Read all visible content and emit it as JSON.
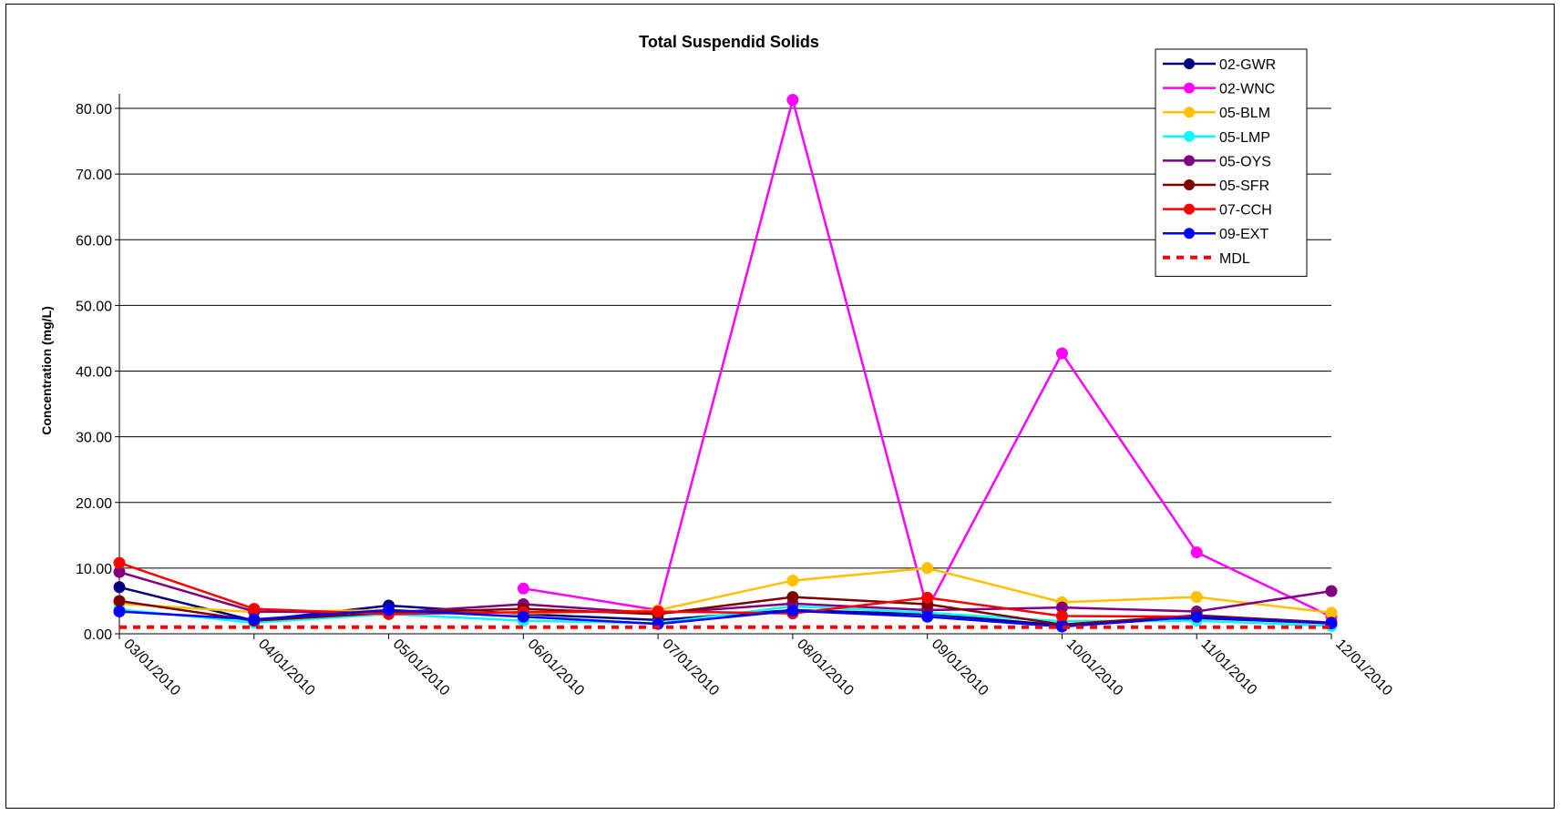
{
  "chart_data": {
    "type": "line",
    "title": "Total Suspendid Solids",
    "xlabel": "",
    "ylabel": "Concentration (mg/L)",
    "ylim": [
      0,
      80
    ],
    "yticks": [
      "0.00",
      "10.00",
      "20.00",
      "30.00",
      "40.00",
      "50.00",
      "60.00",
      "70.00",
      "80.00"
    ],
    "categories": [
      "03/01/2010",
      "04/01/2010",
      "05/01/2010",
      "06/01/2010",
      "07/01/2010",
      "08/01/2010",
      "09/01/2010",
      "10/01/2010",
      "11/01/2010",
      "12/01/2010"
    ],
    "grid": "horizontal",
    "legend_position": "top-right",
    "series": [
      {
        "name": "02-GWR",
        "color": "#000080",
        "values": [
          7.1,
          2.0,
          4.3,
          3.0,
          2.1,
          3.6,
          3.0,
          1.3,
          2.4,
          1.6
        ]
      },
      {
        "name": "02-WNC",
        "color": "#FF00FF",
        "values": [
          null,
          null,
          null,
          6.9,
          3.6,
          81.3,
          3.8,
          42.7,
          12.4,
          2.6
        ]
      },
      {
        "name": "05-BLM",
        "color": "#FFC000",
        "values": [
          4.6,
          3.3,
          3.6,
          3.1,
          3.6,
          8.1,
          10.0,
          4.8,
          5.6,
          3.2
        ]
      },
      {
        "name": "05-LMP",
        "color": "#00FFFF",
        "values": [
          3.7,
          1.7,
          3.0,
          2.0,
          1.6,
          4.2,
          3.2,
          1.9,
          2.0,
          1.2
        ]
      },
      {
        "name": "05-OYS",
        "color": "#800080",
        "values": [
          9.4,
          3.4,
          3.2,
          4.5,
          3.1,
          4.6,
          3.6,
          4.0,
          3.4,
          6.5
        ]
      },
      {
        "name": "05-SFR",
        "color": "#800000",
        "values": [
          5.0,
          2.0,
          3.2,
          3.8,
          3.0,
          5.6,
          4.5,
          1.4,
          2.8,
          1.7
        ]
      },
      {
        "name": "07-CCH",
        "color": "#FF0000",
        "values": [
          10.8,
          3.8,
          3.0,
          3.3,
          3.4,
          3.1,
          5.5,
          2.7,
          2.6,
          1.6
        ]
      },
      {
        "name": "09-EXT",
        "color": "#0000FF",
        "values": [
          3.4,
          2.2,
          3.6,
          2.6,
          1.5,
          3.5,
          2.6,
          1.1,
          2.6,
          1.6
        ]
      },
      {
        "name": "MDL",
        "color": "#FF0000",
        "dashed": true,
        "values": [
          1.0,
          1.0,
          1.0,
          1.0,
          1.0,
          1.0,
          1.0,
          1.0,
          1.0,
          1.0
        ]
      }
    ]
  }
}
